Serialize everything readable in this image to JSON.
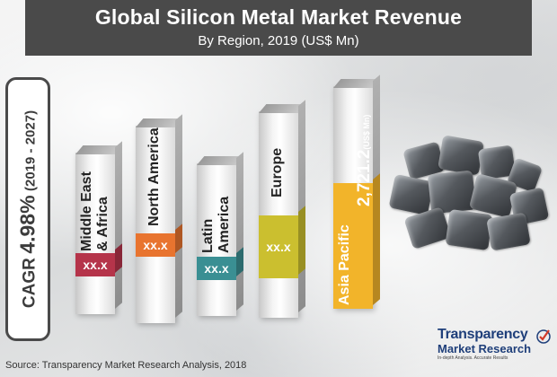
{
  "header": {
    "title": "Global Silicon Metal Market Revenue",
    "subtitle": "By Region, 2019 (US$ Mn)"
  },
  "cagr": {
    "label": "CAGR",
    "value": "4.98%",
    "period": "(2019 - 2027)"
  },
  "colors": {
    "header_bg": "#4a4a4a",
    "middle_east_africa": "#b5344a",
    "north_america": "#e8742f",
    "latin_america": "#3a8f93",
    "europe": "#cbbf2f",
    "asia_pacific": "#f2b42a"
  },
  "chart_data": {
    "type": "bar",
    "title": "Global Silicon Metal Market Revenue",
    "subtitle": "By Region, 2019 (US$ Mn)",
    "categories": [
      "Middle East & Africa",
      "North America",
      "Latin America",
      "Europe",
      "Asia Pacific"
    ],
    "value_labels": [
      "xx.x",
      "xx.x",
      "xx.x",
      "xx.x",
      "2,721.2"
    ],
    "values": [
      null,
      null,
      null,
      null,
      2721.2
    ],
    "relative_heights": [
      0.63,
      0.83,
      0.6,
      0.87,
      1.0
    ],
    "unit": "(US$ Mn)",
    "xlabel": "",
    "ylabel": ""
  },
  "labels": {
    "mea_line1": "Middle East",
    "mea_line2": "& Africa",
    "na": "North America",
    "la_line1": "Latin",
    "la_line2": "America",
    "eu": "Europe",
    "ap": "Asia Pacific"
  },
  "image_icon": "silicon-metal-rocks",
  "source": "Source: Transparency Market Research Analysis, 2018",
  "logo": {
    "line1": "Transparency",
    "line2": "Market Research",
    "tagline": "In-depth Analysis. Accurate Results"
  }
}
